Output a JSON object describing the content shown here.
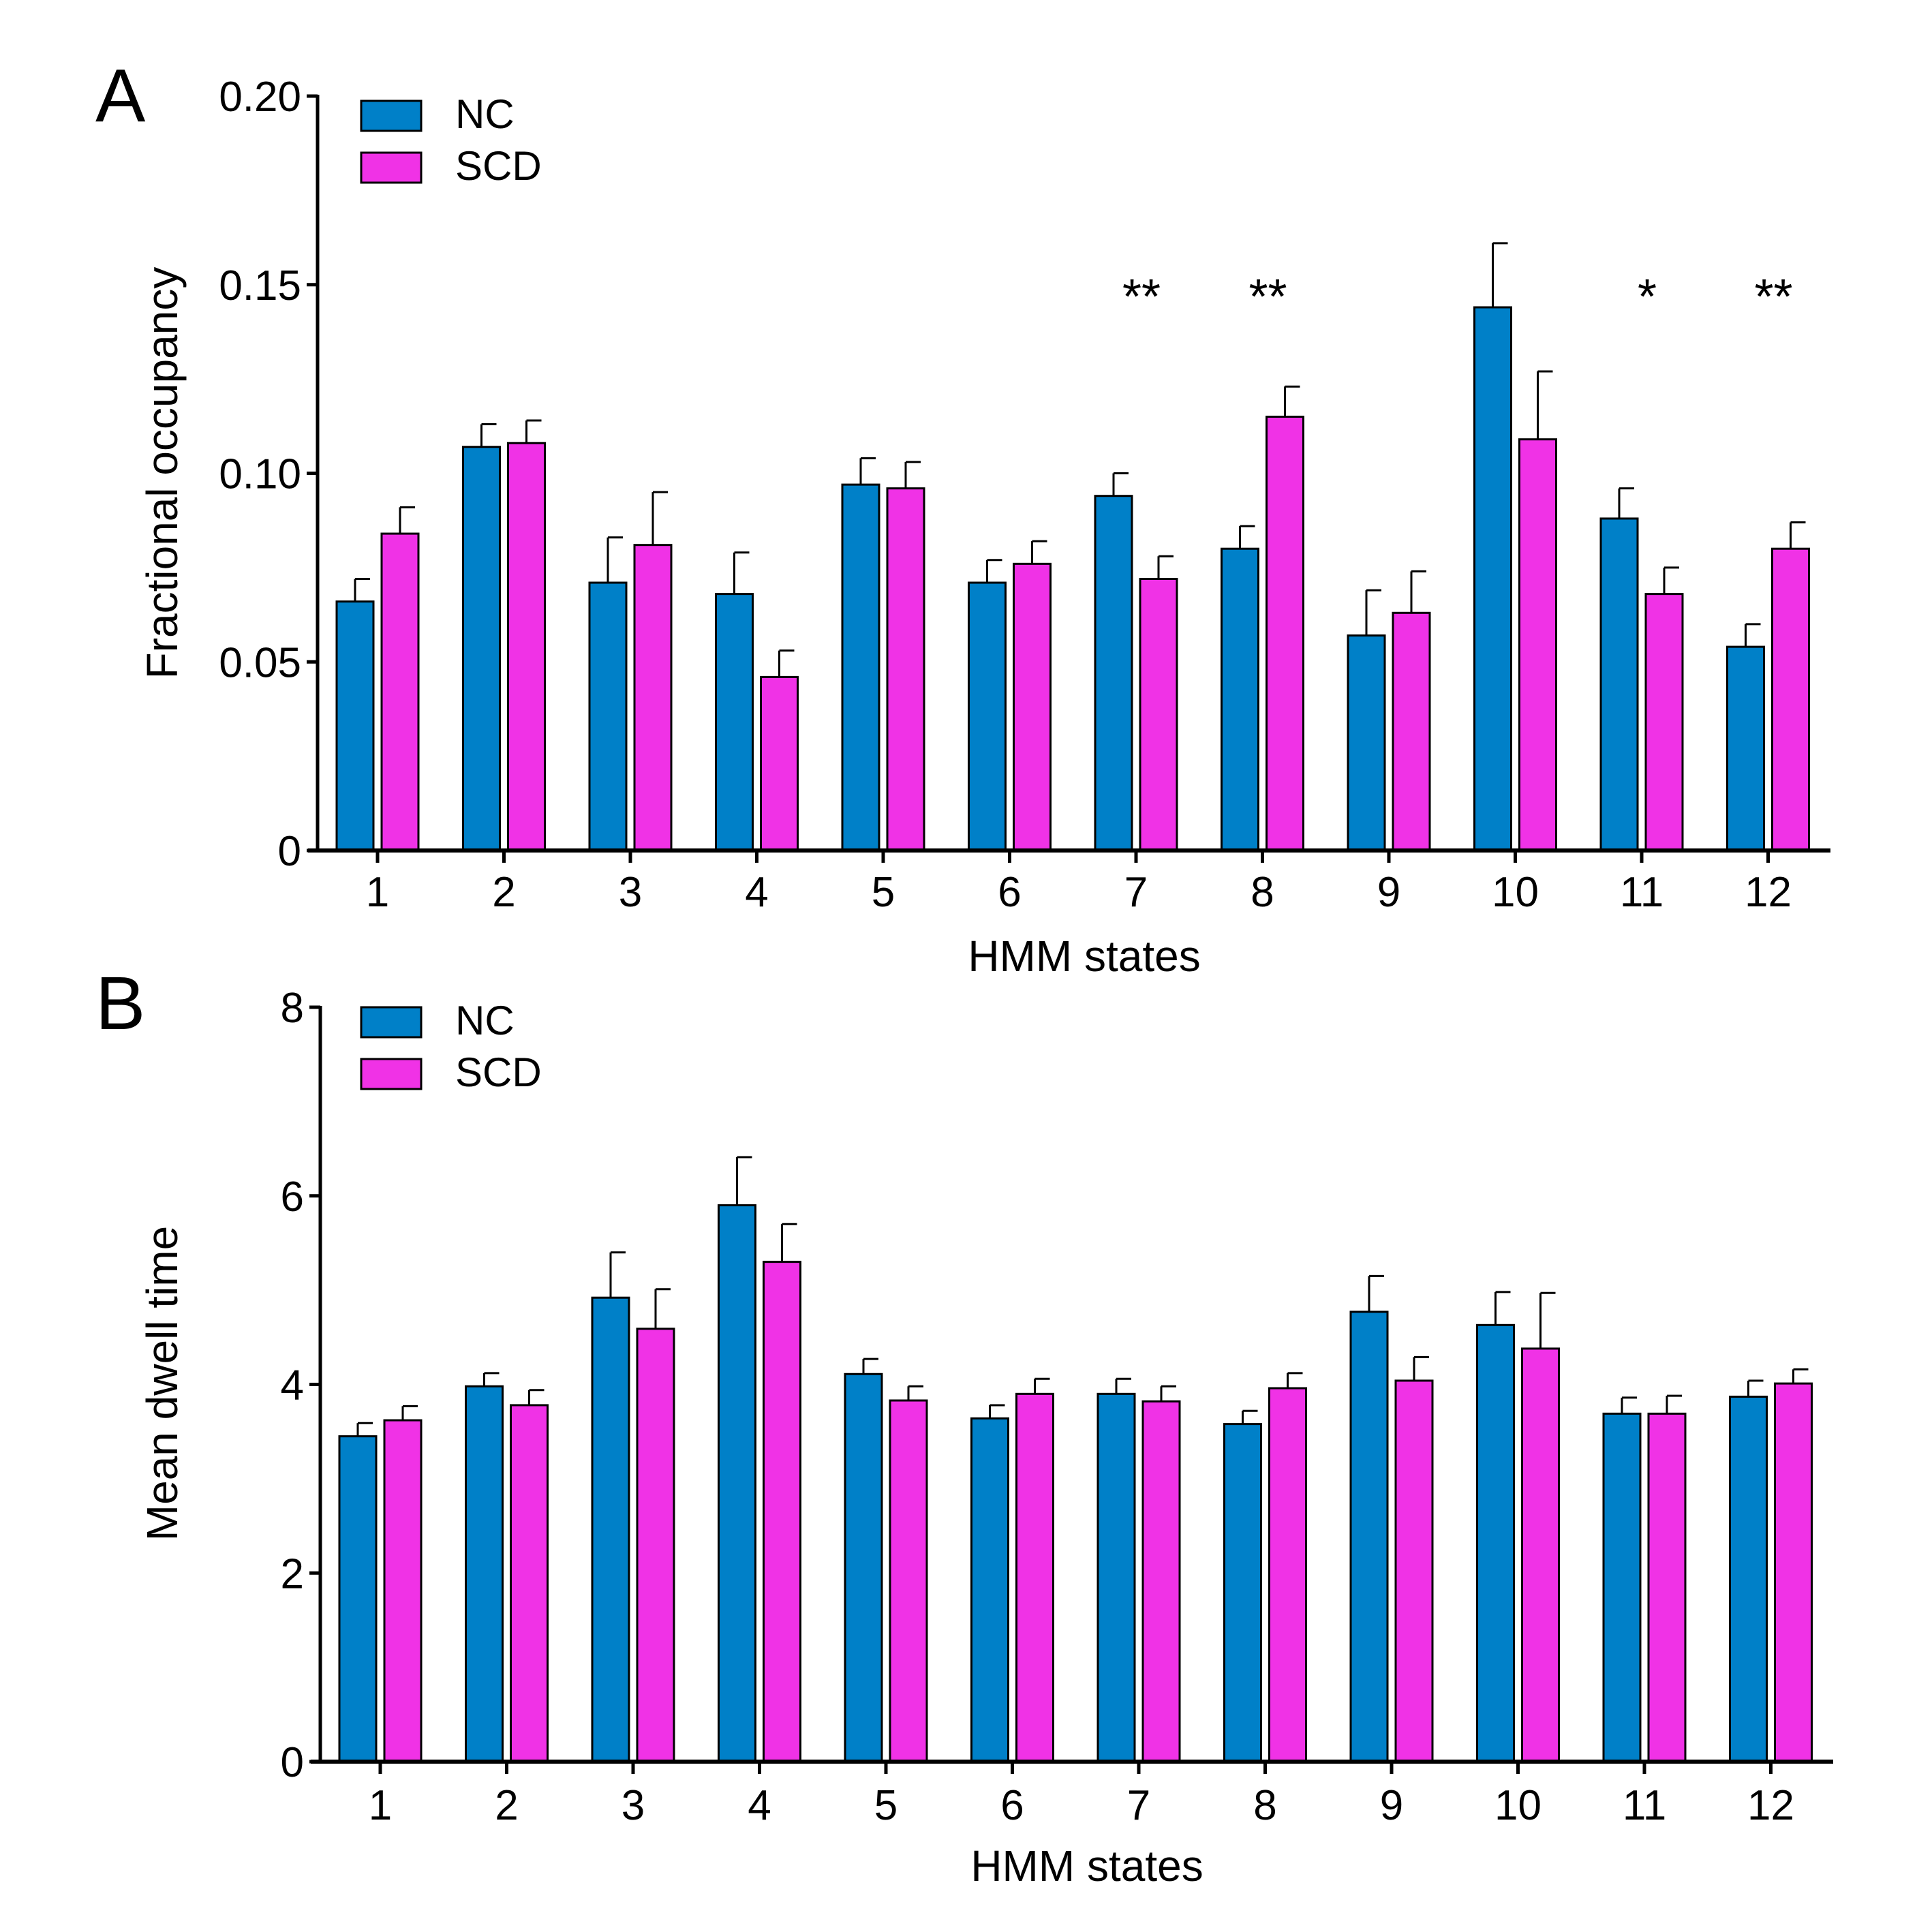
{
  "chart_data": [
    {
      "panel": "A",
      "type": "bar",
      "xlabel": "HMM states",
      "ylabel": "Fractional occupancy",
      "ylim": [
        0,
        0.2
      ],
      "yticks": [
        0,
        0.05,
        0.1,
        0.15,
        0.2
      ],
      "ytick_labels": [
        "0",
        "0.05",
        "0.10",
        "0.15",
        "0.20"
      ],
      "categories": [
        "1",
        "2",
        "3",
        "4",
        "5",
        "6",
        "7",
        "8",
        "9",
        "10",
        "11",
        "12"
      ],
      "series": [
        {
          "name": "NC",
          "color": "#0080c8",
          "values": [
            0.066,
            0.107,
            0.071,
            0.068,
            0.097,
            0.071,
            0.094,
            0.08,
            0.057,
            0.144,
            0.088,
            0.054
          ],
          "errors": [
            0.006,
            0.006,
            0.012,
            0.011,
            0.007,
            0.006,
            0.006,
            0.006,
            0.012,
            0.017,
            0.008,
            0.006
          ]
        },
        {
          "name": "SCD",
          "color": "#f032e6",
          "values": [
            0.084,
            0.108,
            0.081,
            0.046,
            0.096,
            0.076,
            0.072,
            0.115,
            0.063,
            0.109,
            0.068,
            0.08
          ],
          "errors": [
            0.007,
            0.006,
            0.014,
            0.007,
            0.007,
            0.006,
            0.006,
            0.008,
            0.011,
            0.018,
            0.007,
            0.007
          ]
        }
      ],
      "annotations": [
        {
          "category": "7",
          "text": "**"
        },
        {
          "category": "8",
          "text": "**"
        },
        {
          "category": "11",
          "text": "*"
        },
        {
          "category": "12",
          "text": "**"
        }
      ],
      "legend": "top-left"
    },
    {
      "panel": "B",
      "type": "bar",
      "xlabel": "HMM states",
      "ylabel": "Mean dwell time",
      "ylim": [
        0,
        8
      ],
      "yticks": [
        0,
        2,
        4,
        6,
        8
      ],
      "ytick_labels": [
        "0",
        "2",
        "4",
        "6",
        "8"
      ],
      "categories": [
        "1",
        "2",
        "3",
        "4",
        "5",
        "6",
        "7",
        "8",
        "9",
        "10",
        "11",
        "12"
      ],
      "series": [
        {
          "name": "NC",
          "color": "#0080c8",
          "values": [
            3.45,
            3.98,
            4.92,
            5.9,
            4.11,
            3.64,
            3.9,
            3.58,
            4.77,
            4.63,
            3.69,
            3.87
          ],
          "errors": [
            0.14,
            0.14,
            0.48,
            0.51,
            0.16,
            0.14,
            0.16,
            0.14,
            0.38,
            0.35,
            0.17,
            0.17
          ]
        },
        {
          "name": "SCD",
          "color": "#f032e6",
          "values": [
            3.62,
            3.78,
            4.59,
            5.3,
            3.83,
            3.9,
            3.82,
            3.96,
            4.04,
            4.38,
            3.69,
            4.01
          ],
          "errors": [
            0.15,
            0.16,
            0.42,
            0.4,
            0.15,
            0.16,
            0.16,
            0.16,
            0.25,
            0.59,
            0.19,
            0.15
          ]
        }
      ],
      "annotations": [],
      "legend": "top-left"
    }
  ]
}
